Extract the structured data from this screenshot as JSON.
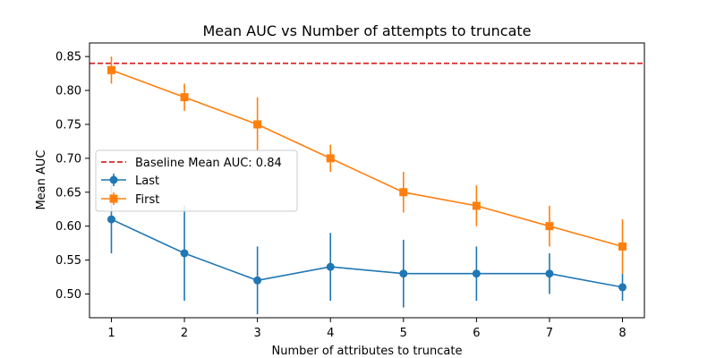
{
  "chart_data": {
    "type": "line",
    "title": "Mean AUC vs Number of attempts to truncate",
    "xlabel": "Number of attributes to truncate",
    "ylabel": "Mean AUC",
    "x": [
      1,
      2,
      3,
      4,
      5,
      6,
      7,
      8
    ],
    "xlim": [
      0.7,
      8.3
    ],
    "ylim": [
      0.465,
      0.87
    ],
    "xticks": [
      "1",
      "2",
      "3",
      "4",
      "5",
      "6",
      "7",
      "8"
    ],
    "yticks": [
      "0.50",
      "0.55",
      "0.60",
      "0.65",
      "0.70",
      "0.75",
      "0.80",
      "0.85"
    ],
    "grid": false,
    "legend_position": "center-left",
    "baseline": {
      "label": "Baseline Mean AUC: 0.84",
      "value": 0.84,
      "color": "#d62728",
      "style": "dashed"
    },
    "series": [
      {
        "name": "Last",
        "marker": "circle",
        "color": "#1f77b4",
        "values": [
          0.61,
          0.56,
          0.52,
          0.54,
          0.53,
          0.53,
          0.53,
          0.51
        ],
        "errors": [
          0.05,
          0.07,
          0.05,
          0.05,
          0.05,
          0.04,
          0.03,
          0.02
        ]
      },
      {
        "name": "First",
        "marker": "square",
        "color": "#ff7f0e",
        "values": [
          0.83,
          0.79,
          0.75,
          0.7,
          0.65,
          0.63,
          0.6,
          0.57
        ],
        "errors": [
          0.02,
          0.02,
          0.04,
          0.02,
          0.03,
          0.03,
          0.03,
          0.04
        ]
      }
    ]
  }
}
